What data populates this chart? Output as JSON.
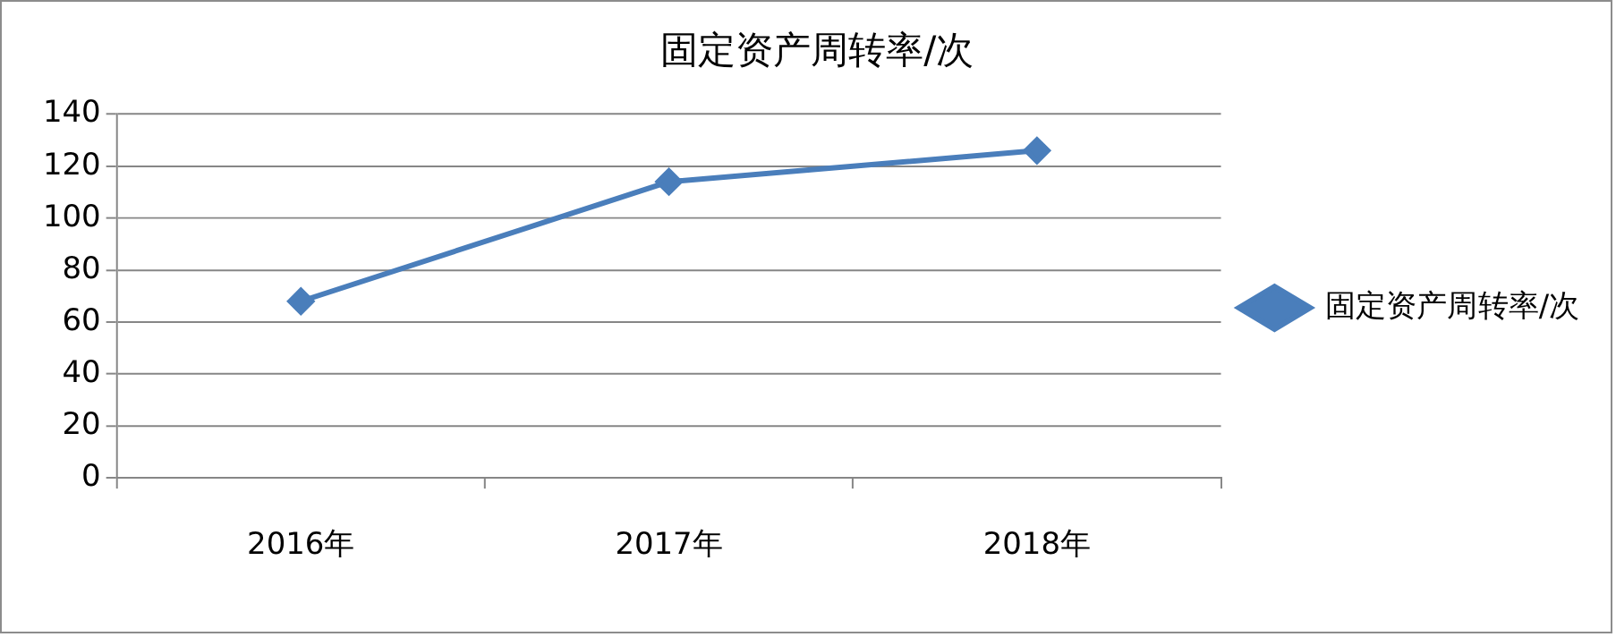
{
  "chart_data": {
    "type": "line",
    "title": "固定资产周转率/次",
    "categories": [
      "2016年",
      "2017年",
      "2018年"
    ],
    "series": [
      {
        "name": "固定资产周转率/次",
        "color": "#4a7ebb",
        "values": [
          68,
          114,
          126
        ]
      }
    ],
    "ylim": [
      0,
      140
    ],
    "yticks": [
      0,
      20,
      40,
      60,
      80,
      100,
      120,
      140
    ],
    "grid": "y",
    "legend": "right",
    "marker": "diamond",
    "line_style": "solid"
  }
}
